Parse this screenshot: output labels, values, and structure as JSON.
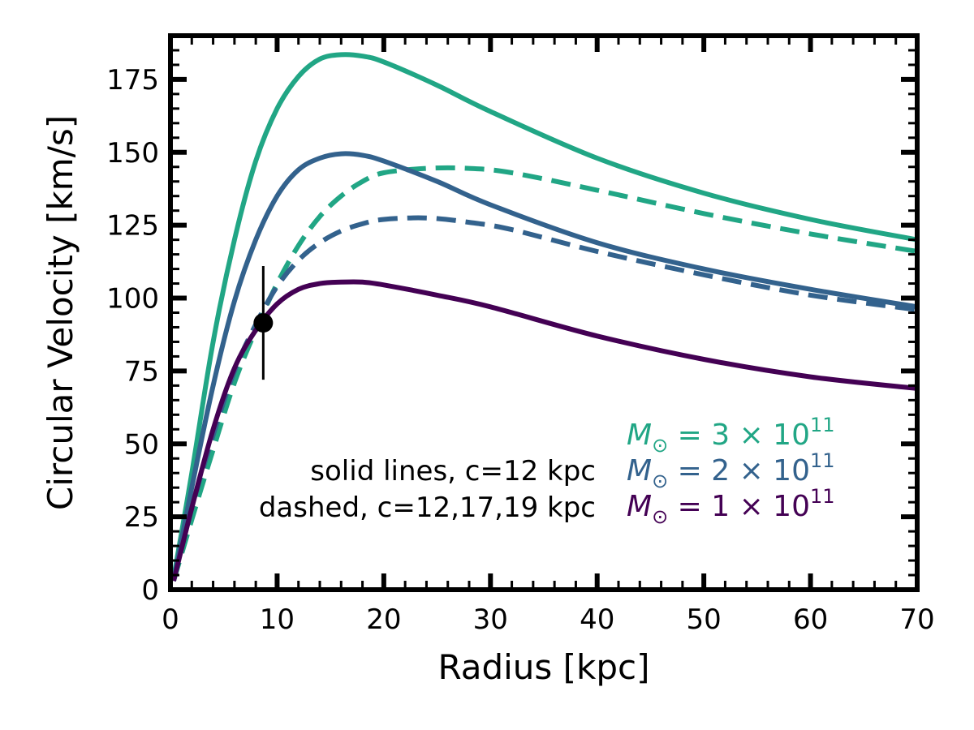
{
  "chart_data": {
    "type": "line",
    "xlabel": "Radius [kpc]",
    "ylabel": "Circular Velocity [km/s]",
    "xlim": [
      0,
      70
    ],
    "ylim": [
      0,
      190
    ],
    "x_ticks": [
      0,
      10,
      20,
      30,
      40,
      50,
      60,
      70
    ],
    "y_ticks": [
      0,
      25,
      50,
      75,
      100,
      125,
      150,
      175
    ],
    "x_tick_labels": [
      "0",
      "10",
      "20",
      "30",
      "40",
      "50",
      "60",
      "70"
    ],
    "y_tick_labels": [
      "0",
      "25",
      "50",
      "75",
      "100",
      "125",
      "150",
      "175"
    ],
    "grid": false,
    "series": [
      {
        "name": "M⊙ = 3 × 10^11",
        "style": "solid",
        "color": "#21a685",
        "points": [
          [
            0.3,
            4
          ],
          [
            2,
            40
          ],
          [
            4,
            85
          ],
          [
            6,
            120
          ],
          [
            8,
            147
          ],
          [
            10,
            165
          ],
          [
            12,
            176
          ],
          [
            14,
            182
          ],
          [
            16,
            183.5
          ],
          [
            18,
            183
          ],
          [
            20,
            181
          ],
          [
            25,
            173
          ],
          [
            30,
            164
          ],
          [
            40,
            148
          ],
          [
            50,
            136
          ],
          [
            60,
            127
          ],
          [
            70,
            120
          ]
        ]
      },
      {
        "name": "M⊙ = 2 × 10^11",
        "style": "solid",
        "color": "#33628d",
        "points": [
          [
            0.3,
            3
          ],
          [
            2,
            35
          ],
          [
            4,
            70
          ],
          [
            6,
            99
          ],
          [
            8,
            120
          ],
          [
            10,
            135
          ],
          [
            12,
            144
          ],
          [
            14,
            148
          ],
          [
            16,
            149.5
          ],
          [
            18,
            149
          ],
          [
            20,
            147
          ],
          [
            25,
            140
          ],
          [
            30,
            132
          ],
          [
            40,
            119
          ],
          [
            50,
            110
          ],
          [
            60,
            103
          ],
          [
            70,
            97
          ]
        ]
      },
      {
        "name": "M⊙ = 1 × 10^11",
        "style": "solid",
        "color": "#440154",
        "points": [
          [
            0.3,
            3
          ],
          [
            2,
            28
          ],
          [
            4,
            55
          ],
          [
            6,
            76
          ],
          [
            8,
            89
          ],
          [
            10,
            98
          ],
          [
            12,
            103
          ],
          [
            14,
            105
          ],
          [
            16,
            105.5
          ],
          [
            18,
            105.5
          ],
          [
            20,
            104.5
          ],
          [
            25,
            101
          ],
          [
            30,
            97
          ],
          [
            40,
            87
          ],
          [
            50,
            79
          ],
          [
            60,
            73
          ],
          [
            70,
            69
          ]
        ]
      },
      {
        "name": "M⊙ = 3 × 10^11 (dashed)",
        "style": "dashed",
        "color": "#21a685",
        "points": [
          [
            0.3,
            3
          ],
          [
            2,
            24
          ],
          [
            4,
            48
          ],
          [
            6,
            71
          ],
          [
            8,
            89
          ],
          [
            10,
            105
          ],
          [
            12,
            118
          ],
          [
            14,
            128
          ],
          [
            16,
            135
          ],
          [
            18,
            140
          ],
          [
            20,
            143
          ],
          [
            24,
            144.5
          ],
          [
            28,
            144.5
          ],
          [
            32,
            143
          ],
          [
            40,
            137
          ],
          [
            50,
            129
          ],
          [
            60,
            122
          ],
          [
            70,
            116
          ]
        ]
      },
      {
        "name": "M⊙ = 2 × 10^11 (dashed)",
        "style": "dashed",
        "color": "#33628d",
        "points": [
          [
            0.3,
            3
          ],
          [
            2,
            28
          ],
          [
            4,
            53
          ],
          [
            6,
            75
          ],
          [
            8,
            91
          ],
          [
            10,
            104
          ],
          [
            12,
            113
          ],
          [
            14,
            119
          ],
          [
            16,
            123
          ],
          [
            18,
            125.5
          ],
          [
            20,
            127
          ],
          [
            24,
            127.5
          ],
          [
            28,
            126
          ],
          [
            32,
            123.5
          ],
          [
            40,
            116
          ],
          [
            50,
            108
          ],
          [
            60,
            101
          ],
          [
            70,
            96
          ]
        ]
      }
    ],
    "data_point": {
      "x": 8.7,
      "y": 91.5,
      "yerr": 19.5,
      "color": "#000000"
    },
    "annotations": {
      "solid_note": "solid lines, c=12 kpc",
      "dashed_note": "dashed, c=12,17,19 kpc"
    },
    "legend": {
      "placement": "lower-right",
      "entries": [
        {
          "prefix": "M",
          "sub": "⊙",
          "middle": " = 3 × 10",
          "sup": "11",
          "color": "#21a685"
        },
        {
          "prefix": "M",
          "sub": "⊙",
          "middle": " = 2 × 10",
          "sup": "11",
          "color": "#33628d"
        },
        {
          "prefix": "M",
          "sub": "⊙",
          "middle": " = 1 × 10",
          "sup": "11",
          "color": "#440154"
        }
      ]
    }
  }
}
